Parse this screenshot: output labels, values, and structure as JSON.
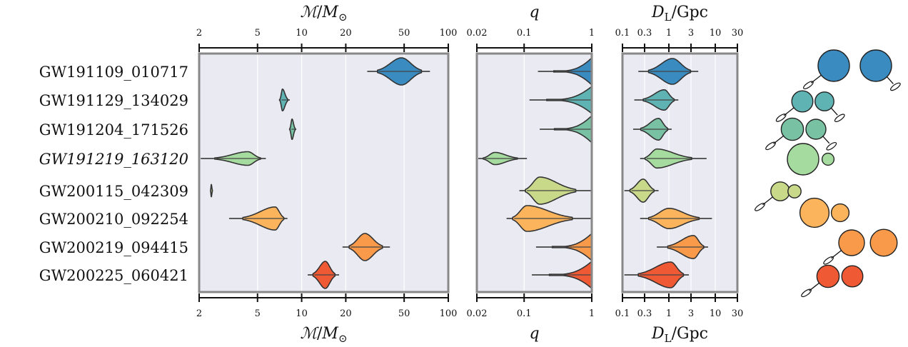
{
  "events": [
    {
      "name": "GW191109_010717",
      "italic": false,
      "color": "#3a8bbf"
    },
    {
      "name": "GW191129_134029",
      "italic": false,
      "color": "#5fb3b3"
    },
    {
      "name": "GW191204_171526",
      "italic": false,
      "color": "#78c1a2"
    },
    {
      "name": "GW191219_163120",
      "italic": true,
      "color": "#a6dba0"
    },
    {
      "name": "GW200115_042309",
      "italic": false,
      "color": "#c9d98a"
    },
    {
      "name": "GW200210_092254",
      "italic": false,
      "color": "#fbb45c"
    },
    {
      "name": "GW200219_094415",
      "italic": false,
      "color": "#f99a4a"
    },
    {
      "name": "GW200225_060421",
      "italic": false,
      "color": "#ef5a35"
    }
  ],
  "chart_data": [
    {
      "type": "violin",
      "xlabel": "M/M⊙",
      "xscale": "log",
      "xlim": [
        2,
        100
      ],
      "xticks": [
        2,
        5,
        10,
        20,
        50,
        100
      ],
      "xticklabels": [
        "2",
        "5",
        "10",
        "20",
        "50",
        "100"
      ],
      "grid": true,
      "series": [
        {
          "event": "GW191109_010717",
          "lo": 28,
          "mode": 48,
          "hi": 75,
          "width": 1.0,
          "skew": 0
        },
        {
          "event": "GW191129_134029",
          "lo": 7.0,
          "mode": 7.4,
          "hi": 8.3,
          "width": 0.8,
          "skew": 0
        },
        {
          "event": "GW191204_171526",
          "lo": 8.2,
          "mode": 8.6,
          "hi": 9.2,
          "width": 0.75,
          "skew": 0
        },
        {
          "event": "GW191219_163120",
          "lo": 2.05,
          "mode": 4.3,
          "hi": 5.7,
          "width": 0.5,
          "skew": 0
        },
        {
          "event": "GW200115_042309",
          "lo": 2.38,
          "mode": 2.42,
          "hi": 2.48,
          "width": 0.45,
          "skew": 0
        },
        {
          "event": "GW200210_092254",
          "lo": 3.2,
          "mode": 6.6,
          "hi": 8.0,
          "width": 0.85,
          "skew": 0
        },
        {
          "event": "GW200219_094415",
          "lo": 19,
          "mode": 27,
          "hi": 40,
          "width": 1.0,
          "skew": 0
        },
        {
          "event": "GW200225_060421",
          "lo": 11,
          "mode": 14.5,
          "hi": 18,
          "width": 1.0,
          "skew": 0
        }
      ]
    },
    {
      "type": "violin",
      "xlabel": "q",
      "xscale": "log",
      "xlim": [
        0.02,
        1
      ],
      "xticks": [
        0.02,
        0.1,
        1
      ],
      "xticklabels": [
        "0.02",
        "0.1",
        "1"
      ],
      "grid": true,
      "series": [
        {
          "event": "GW191109_010717",
          "lo": 0.16,
          "mode": 0.97,
          "hi": 1.0,
          "width": 0.95,
          "skew": 1
        },
        {
          "event": "GW191129_134029",
          "lo": 0.12,
          "mode": 0.85,
          "hi": 1.0,
          "width": 0.95,
          "skew": 1
        },
        {
          "event": "GW191204_171526",
          "lo": 0.17,
          "mode": 0.9,
          "hi": 1.0,
          "width": 0.95,
          "skew": 1
        },
        {
          "event": "GW191219_163120",
          "lo": 0.021,
          "mode": 0.037,
          "hi": 0.11,
          "width": 0.45,
          "skew": 0
        },
        {
          "event": "GW200115_042309",
          "lo": 0.085,
          "mode": 0.17,
          "hi": 0.98,
          "width": 1.0,
          "skew": 0
        },
        {
          "event": "GW200210_092254",
          "lo": 0.055,
          "mode": 0.11,
          "hi": 1.0,
          "width": 0.95,
          "skew": 0
        },
        {
          "event": "GW200219_094415",
          "lo": 0.15,
          "mode": 0.95,
          "hi": 1.0,
          "width": 0.95,
          "skew": 1
        },
        {
          "event": "GW200225_060421",
          "lo": 0.13,
          "mode": 0.95,
          "hi": 1.0,
          "width": 0.95,
          "skew": 1
        }
      ]
    },
    {
      "type": "violin",
      "xlabel": "DL/Gpc",
      "xscale": "log",
      "xlim": [
        0.1,
        30
      ],
      "xticks": [
        0.1,
        0.3,
        1,
        3,
        10,
        30
      ],
      "xticklabels": [
        "0.1",
        "0.3",
        "1",
        "3",
        "10",
        "30"
      ],
      "grid": true,
      "series": [
        {
          "event": "GW191109_010717",
          "lo": 0.22,
          "mode": 1.2,
          "hi": 4.3,
          "width": 0.95,
          "skew": 0
        },
        {
          "event": "GW191129_134029",
          "lo": 0.18,
          "mode": 0.8,
          "hi": 1.6,
          "width": 0.75,
          "skew": 0
        },
        {
          "event": "GW191204_171526",
          "lo": 0.17,
          "mode": 0.6,
          "hi": 1.15,
          "width": 0.8,
          "skew": 0
        },
        {
          "event": "GW191219_163120",
          "lo": 0.24,
          "mode": 0.55,
          "hi": 6.5,
          "width": 0.7,
          "skew": 0
        },
        {
          "event": "GW200115_042309",
          "lo": 0.11,
          "mode": 0.28,
          "hi": 0.6,
          "width": 0.85,
          "skew": 0
        },
        {
          "event": "GW200210_092254",
          "lo": 0.24,
          "mode": 1.0,
          "hi": 8.5,
          "width": 0.75,
          "skew": 0
        },
        {
          "event": "GW200219_094415",
          "lo": 0.55,
          "mode": 3.4,
          "hi": 7.0,
          "width": 0.85,
          "skew": 0
        },
        {
          "event": "GW200225_060421",
          "lo": 0.11,
          "mode": 1.1,
          "hi": 2.7,
          "width": 0.95,
          "skew": 0
        }
      ]
    }
  ],
  "cartoon": {
    "description_free": true,
    "systems": [
      {
        "m1": 1.0,
        "m2": 1.0,
        "spin": [
          1,
          1
        ]
      },
      {
        "m1": 0.55,
        "m2": 0.45,
        "spin": [
          1,
          1
        ]
      },
      {
        "m1": 0.6,
        "m2": 0.5,
        "spin": [
          1,
          1
        ]
      },
      {
        "m1": 1.0,
        "m2": 0.15,
        "spin": [
          0,
          0
        ]
      },
      {
        "m1": 0.45,
        "m2": 0.2,
        "spin": [
          1,
          0
        ]
      },
      {
        "m1": 0.9,
        "m2": 0.4,
        "spin": [
          0,
          0
        ]
      },
      {
        "m1": 0.75,
        "m2": 0.8,
        "spin": [
          1,
          0
        ]
      },
      {
        "m1": 0.6,
        "m2": 0.55,
        "spin": [
          1,
          0
        ]
      }
    ]
  }
}
